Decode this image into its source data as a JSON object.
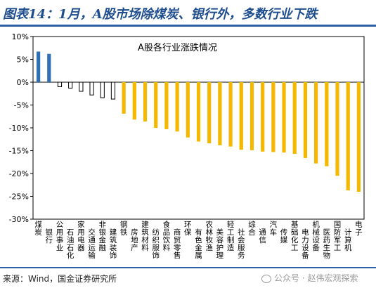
{
  "title": "图表14：1月，A股市场除煤炭、银行外，多数行业下跌",
  "source": "来源：Wind，国金证券研究所",
  "watermark": "公众号 · 赵伟宏观探索",
  "colors": {
    "positive": "#2f6fb5",
    "white_bar": "#ffffff",
    "negative": "#f5b800",
    "border": "#000000",
    "title": "#1f4e8f"
  },
  "chart_data": {
    "type": "bar",
    "title": "A股各行业涨跌情况",
    "ylim": [
      -30,
      10
    ],
    "yticks": [
      10,
      5,
      0,
      -5,
      -10,
      -15,
      -20,
      -25,
      -30
    ],
    "ytick_labels": [
      "10%",
      "5%",
      "0%",
      "-5%",
      "-10%",
      "-15%",
      "-20%",
      "-25%",
      "-30%"
    ],
    "grid": false,
    "categories": [
      "煤炭",
      "银行",
      "公用事业",
      "石油石化",
      "家用电器",
      "交通运输",
      "非银金融",
      "建筑装饰",
      "钢铁",
      "房地产",
      "建筑材料",
      "纺织服饰",
      "食品饮料",
      "商贸零售",
      "环保",
      "有色金属",
      "农林牧渔",
      "美容护理",
      "轻工制造",
      "社会服务",
      "综合",
      "通信",
      "汽车",
      "传媒",
      "基础化工",
      "电力设备",
      "机械设备",
      "医药生物",
      "国防军工",
      "计算机",
      "电子"
    ],
    "values": [
      6.7,
      6.2,
      -1.0,
      -1.3,
      -2.0,
      -2.8,
      -3.4,
      -3.7,
      -6.9,
      -8.2,
      -8.6,
      -10.0,
      -10.3,
      -10.8,
      -12.1,
      -13.0,
      -13.4,
      -13.8,
      -14.1,
      -14.8,
      -14.9,
      -15.2,
      -15.3,
      -15.4,
      -15.7,
      -16.6,
      -17.8,
      -18.4,
      -20.5,
      -23.7,
      -24.0
    ],
    "bar_styles": [
      "blue",
      "blue",
      "white",
      "white",
      "white",
      "white",
      "white",
      "white",
      "yellow",
      "yellow",
      "yellow",
      "yellow",
      "yellow",
      "yellow",
      "yellow",
      "yellow",
      "yellow",
      "yellow",
      "yellow",
      "yellow",
      "yellow",
      "yellow",
      "yellow",
      "yellow",
      "yellow",
      "yellow",
      "yellow",
      "yellow",
      "yellow",
      "yellow",
      "yellow"
    ]
  }
}
